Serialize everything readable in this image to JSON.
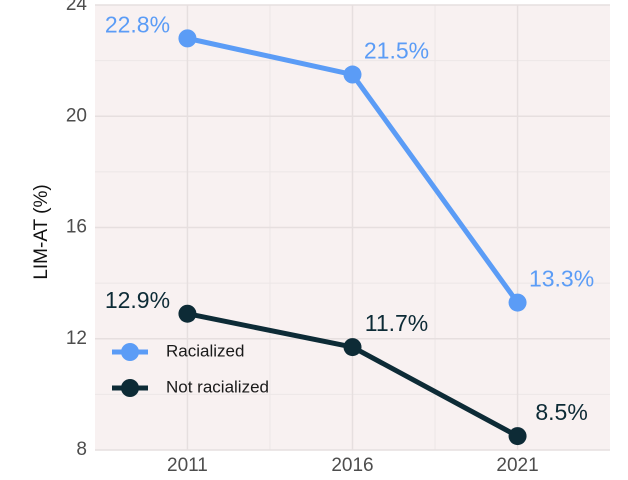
{
  "chart_data": {
    "type": "line",
    "y_label": "LIM-AT (%)",
    "x": [
      2011,
      2016,
      2021
    ],
    "xlim": [
      2008.2,
      2023.8
    ],
    "xticks": [
      2011,
      2016,
      2021
    ],
    "ylim": [
      8,
      24
    ],
    "yticks": [
      8,
      12,
      16,
      20,
      24
    ],
    "grid": true,
    "legend_position": "left",
    "series": [
      {
        "name": "Racialized",
        "color": "#5b9cf6",
        "values": [
          22.8,
          21.5,
          13.3
        ],
        "value_labels": [
          "22.8%",
          "21.5%",
          "13.3%"
        ]
      },
      {
        "name": "Not racialized",
        "color": "#0d2b36",
        "values": [
          12.9,
          11.7,
          8.5
        ],
        "value_labels": [
          "12.9%",
          "11.7%",
          "8.5%"
        ]
      }
    ]
  }
}
